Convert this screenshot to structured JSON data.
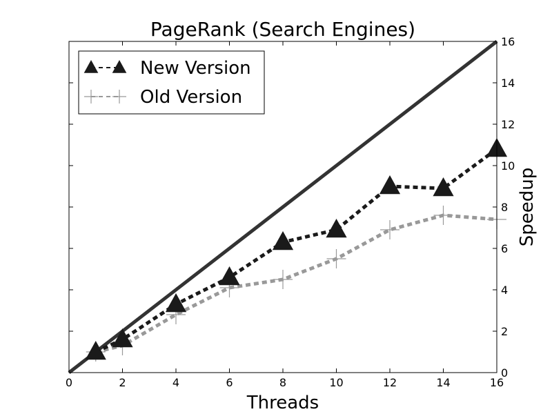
{
  "chart_data": {
    "type": "line",
    "title": "PageRank (Search Engines)",
    "xlabel": "Threads",
    "ylabel": "Speedup",
    "xlim": [
      0,
      16
    ],
    "ylim": [
      0,
      16
    ],
    "xticks": [
      0,
      2,
      4,
      6,
      8,
      10,
      12,
      14,
      16
    ],
    "yticks": [
      0,
      2,
      4,
      6,
      8,
      10,
      12,
      14,
      16
    ],
    "y_axis_side": "right",
    "grid": false,
    "legend_position": "top-left",
    "ideal_line": {
      "x": [
        0,
        16
      ],
      "y": [
        0,
        16
      ],
      "color": "#333333"
    },
    "series": [
      {
        "name": "New Version",
        "marker": "triangle",
        "line_style": "dotted",
        "color": "#1a1a1a",
        "x": [
          1,
          2,
          4,
          6,
          8,
          10,
          12,
          14,
          16
        ],
        "y": [
          1.0,
          1.6,
          3.3,
          4.6,
          6.3,
          6.9,
          9.0,
          8.9,
          10.8
        ]
      },
      {
        "name": "Old Version",
        "marker": "plus",
        "line_style": "dotted",
        "color": "#999999",
        "x": [
          1,
          2,
          4,
          6,
          8,
          10,
          12,
          14,
          16
        ],
        "y": [
          1.0,
          1.3,
          2.8,
          4.1,
          4.5,
          5.5,
          6.9,
          7.6,
          7.4
        ]
      }
    ]
  }
}
